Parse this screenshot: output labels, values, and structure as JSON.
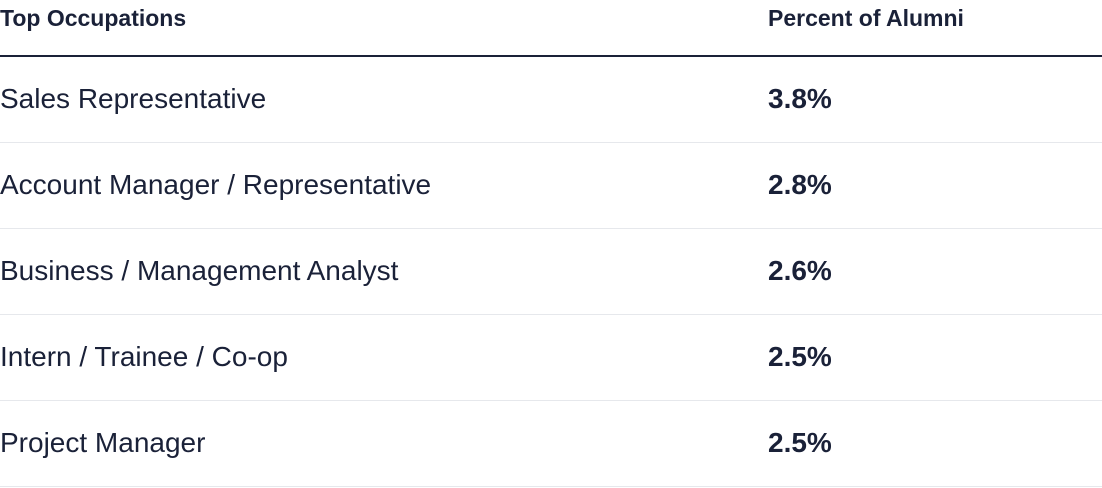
{
  "table": {
    "headers": {
      "occupation": "Top Occupations",
      "percent": "Percent of Alumni"
    },
    "rows": [
      {
        "occupation": "Sales Representative",
        "percent": "3.8%"
      },
      {
        "occupation": "Account Manager / Representative",
        "percent": "2.8%"
      },
      {
        "occupation": "Business / Management Analyst",
        "percent": "2.6%"
      },
      {
        "occupation": "Intern / Trainee / Co-op",
        "percent": "2.5%"
      },
      {
        "occupation": "Project Manager",
        "percent": "2.5%"
      }
    ]
  }
}
